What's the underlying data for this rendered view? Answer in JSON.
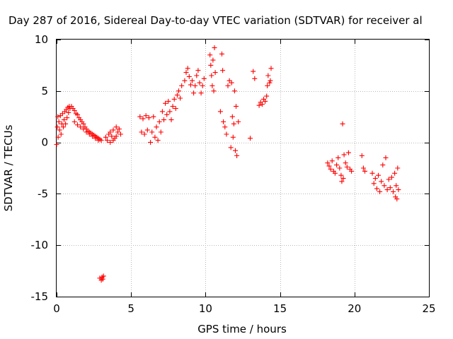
{
  "chart_data": {
    "type": "scatter",
    "title": "Day 287 of 2016, Sidereal Day-to-day VTEC variation (SDTVAR) for receiver al",
    "xlabel": "GPS time / hours",
    "ylabel": "SDTVAR / TECUs",
    "xlim": [
      0,
      25
    ],
    "ylim": [
      -15,
      10
    ],
    "x_ticks": [
      0,
      5,
      10,
      15,
      20,
      25
    ],
    "x_tick_labels": [
      "0",
      "5",
      "10",
      "15",
      "20",
      "25"
    ],
    "y_ticks": [
      -15,
      -10,
      -5,
      0,
      5,
      10
    ],
    "y_tick_labels": [
      "-15",
      "-10",
      "-5",
      "0",
      "5",
      "10"
    ],
    "grid": true,
    "marker": "+",
    "color": "#ff0000",
    "series": [
      {
        "name": "SDTVAR",
        "points": [
          [
            0.0,
            -0.2
          ],
          [
            0.05,
            1.5
          ],
          [
            0.08,
            2.5
          ],
          [
            0.1,
            0.5
          ],
          [
            0.15,
            2.0
          ],
          [
            0.2,
            1.2
          ],
          [
            0.25,
            2.6
          ],
          [
            0.3,
            0.8
          ],
          [
            0.35,
            1.8
          ],
          [
            0.4,
            2.8
          ],
          [
            0.45,
            1.5
          ],
          [
            0.5,
            2.2
          ],
          [
            0.55,
            3.0
          ],
          [
            0.6,
            1.8
          ],
          [
            0.65,
            3.2
          ],
          [
            0.7,
            2.4
          ],
          [
            0.75,
            3.4
          ],
          [
            0.8,
            2.9
          ],
          [
            0.85,
            3.5
          ],
          [
            0.9,
            3.3
          ],
          [
            1.0,
            3.5
          ],
          [
            1.1,
            3.3
          ],
          [
            1.2,
            3.1
          ],
          [
            1.3,
            2.8
          ],
          [
            1.4,
            2.7
          ],
          [
            1.5,
            2.4
          ],
          [
            1.6,
            2.2
          ],
          [
            1.7,
            2.0
          ],
          [
            1.8,
            1.8
          ],
          [
            1.9,
            1.5
          ],
          [
            2.0,
            1.3
          ],
          [
            2.1,
            1.1
          ],
          [
            2.2,
            1.0
          ],
          [
            2.3,
            0.9
          ],
          [
            2.4,
            0.8
          ],
          [
            2.5,
            0.7
          ],
          [
            2.6,
            0.6
          ],
          [
            2.7,
            0.5
          ],
          [
            2.8,
            0.4
          ],
          [
            2.9,
            0.3
          ],
          [
            3.0,
            0.2
          ],
          [
            1.2,
            2.0
          ],
          [
            1.4,
            1.7
          ],
          [
            1.6,
            1.5
          ],
          [
            1.8,
            1.3
          ],
          [
            2.0,
            1.0
          ],
          [
            2.2,
            0.8
          ],
          [
            2.4,
            0.6
          ],
          [
            2.6,
            0.4
          ],
          [
            2.8,
            0.2
          ],
          [
            2.9,
            -13.2
          ],
          [
            3.0,
            -13.4
          ],
          [
            3.05,
            -13.1
          ],
          [
            3.1,
            -13.3
          ],
          [
            3.15,
            -13.0
          ],
          [
            3.3,
            0.5
          ],
          [
            3.4,
            0.2
          ],
          [
            3.5,
            0.8
          ],
          [
            3.6,
            1.0
          ],
          [
            3.7,
            0.6
          ],
          [
            3.8,
            1.2
          ],
          [
            3.9,
            0.4
          ],
          [
            4.0,
            1.5
          ],
          [
            4.1,
            1.0
          ],
          [
            4.2,
            1.3
          ],
          [
            4.3,
            0.8
          ],
          [
            3.6,
            0.0
          ],
          [
            3.8,
            0.2
          ],
          [
            4.0,
            0.6
          ],
          [
            5.6,
            2.5
          ],
          [
            5.7,
            1.0
          ],
          [
            5.8,
            2.3
          ],
          [
            5.9,
            0.8
          ],
          [
            6.0,
            2.6
          ],
          [
            6.1,
            1.2
          ],
          [
            6.2,
            2.4
          ],
          [
            6.3,
            0.0
          ],
          [
            6.4,
            1.0
          ],
          [
            6.5,
            2.5
          ],
          [
            6.6,
            0.5
          ],
          [
            6.7,
            1.5
          ],
          [
            6.8,
            0.2
          ],
          [
            6.9,
            2.0
          ],
          [
            7.0,
            1.0
          ],
          [
            7.1,
            3.0
          ],
          [
            7.2,
            2.2
          ],
          [
            7.3,
            3.8
          ],
          [
            7.4,
            2.7
          ],
          [
            7.5,
            4.0
          ],
          [
            7.6,
            3.0
          ],
          [
            7.7,
            2.2
          ],
          [
            7.8,
            3.5
          ],
          [
            7.9,
            4.2
          ],
          [
            8.0,
            3.3
          ],
          [
            8.1,
            4.6
          ],
          [
            8.2,
            5.0
          ],
          [
            8.3,
            4.3
          ],
          [
            8.4,
            5.5
          ],
          [
            8.6,
            6.0
          ],
          [
            8.7,
            6.8
          ],
          [
            8.8,
            7.2
          ],
          [
            8.9,
            6.4
          ],
          [
            9.0,
            5.6
          ],
          [
            9.1,
            6.0
          ],
          [
            9.2,
            4.8
          ],
          [
            9.3,
            5.5
          ],
          [
            9.4,
            6.5
          ],
          [
            9.5,
            7.0
          ],
          [
            9.6,
            5.8
          ],
          [
            9.7,
            4.8
          ],
          [
            9.8,
            5.5
          ],
          [
            9.9,
            6.2
          ],
          [
            10.3,
            8.5
          ],
          [
            10.35,
            7.5
          ],
          [
            10.4,
            6.5
          ],
          [
            10.45,
            5.5
          ],
          [
            10.5,
            8.0
          ],
          [
            10.55,
            5.0
          ],
          [
            10.6,
            9.2
          ],
          [
            10.65,
            6.8
          ],
          [
            11.0,
            3.0
          ],
          [
            11.1,
            8.6
          ],
          [
            11.15,
            7.0
          ],
          [
            11.2,
            2.0
          ],
          [
            11.3,
            1.5
          ],
          [
            11.4,
            0.8
          ],
          [
            11.5,
            5.5
          ],
          [
            11.6,
            6.0
          ],
          [
            11.7,
            -0.5
          ],
          [
            11.75,
            5.8
          ],
          [
            11.8,
            2.5
          ],
          [
            11.85,
            0.5
          ],
          [
            11.9,
            1.8
          ],
          [
            11.95,
            5.0
          ],
          [
            12.0,
            -0.8
          ],
          [
            12.05,
            3.5
          ],
          [
            12.1,
            -1.3
          ],
          [
            12.2,
            2.0
          ],
          [
            13.0,
            0.4
          ],
          [
            13.2,
            6.9
          ],
          [
            13.3,
            6.2
          ],
          [
            13.6,
            3.6
          ],
          [
            13.7,
            3.9
          ],
          [
            13.8,
            3.7
          ],
          [
            13.9,
            4.2
          ],
          [
            14.0,
            4.0
          ],
          [
            14.1,
            4.5
          ],
          [
            14.15,
            5.5
          ],
          [
            14.2,
            6.5
          ],
          [
            14.3,
            5.8
          ],
          [
            14.4,
            7.2
          ],
          [
            14.35,
            6.0
          ],
          [
            18.2,
            -2.0
          ],
          [
            18.3,
            -2.3
          ],
          [
            18.4,
            -2.6
          ],
          [
            18.5,
            -1.8
          ],
          [
            18.6,
            -2.8
          ],
          [
            18.7,
            -3.0
          ],
          [
            18.8,
            -2.2
          ],
          [
            18.9,
            -1.5
          ],
          [
            19.0,
            -2.5
          ],
          [
            19.1,
            -3.2
          ],
          [
            19.15,
            -3.8
          ],
          [
            19.2,
            1.8
          ],
          [
            19.25,
            -3.5
          ],
          [
            19.3,
            -1.2
          ],
          [
            19.4,
            -2.0
          ],
          [
            19.5,
            -2.4
          ],
          [
            19.6,
            -1.0
          ],
          [
            19.7,
            -2.6
          ],
          [
            19.8,
            -2.8
          ],
          [
            20.5,
            -1.3
          ],
          [
            20.6,
            -2.5
          ],
          [
            20.7,
            -2.8
          ],
          [
            21.2,
            -3.0
          ],
          [
            21.3,
            -4.0
          ],
          [
            21.4,
            -3.5
          ],
          [
            21.5,
            -4.5
          ],
          [
            21.6,
            -3.2
          ],
          [
            21.7,
            -4.8
          ],
          [
            21.8,
            -3.8
          ],
          [
            21.9,
            -2.2
          ],
          [
            22.0,
            -4.2
          ],
          [
            22.1,
            -1.5
          ],
          [
            22.2,
            -4.6
          ],
          [
            22.3,
            -3.6
          ],
          [
            22.4,
            -4.4
          ],
          [
            22.5,
            -3.4
          ],
          [
            22.6,
            -4.8
          ],
          [
            22.7,
            -3.0
          ],
          [
            22.75,
            -5.3
          ],
          [
            22.8,
            -4.2
          ],
          [
            22.85,
            -5.5
          ],
          [
            22.9,
            -2.5
          ],
          [
            22.95,
            -4.6
          ]
        ]
      }
    ]
  }
}
